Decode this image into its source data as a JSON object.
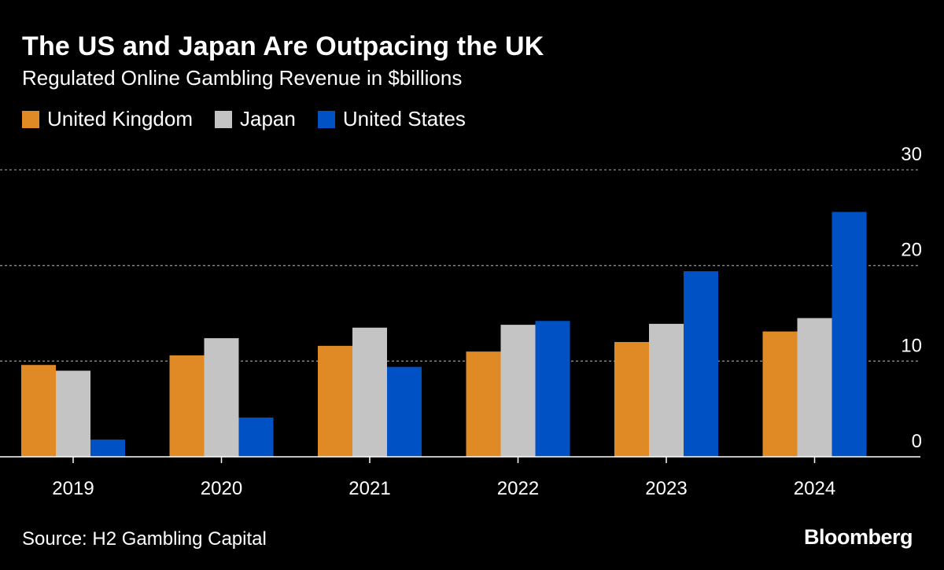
{
  "chart_data": {
    "type": "bar",
    "title": "The US and Japan Are Outpacing the UK",
    "subtitle": "Regulated Online Gambling Revenue in $billions",
    "categories": [
      "2019",
      "2020",
      "2021",
      "2022",
      "2023",
      "2024"
    ],
    "series": [
      {
        "name": "United Kingdom",
        "color": "#e08a25",
        "values": [
          9.6,
          10.6,
          11.6,
          11.0,
          12.0,
          13.1
        ]
      },
      {
        "name": "Japan",
        "color": "#c4c4c4",
        "values": [
          9.0,
          12.4,
          13.5,
          13.8,
          13.9,
          14.5
        ]
      },
      {
        "name": "United States",
        "color": "#0051c3",
        "values": [
          1.8,
          4.1,
          9.4,
          14.2,
          19.4,
          25.6
        ]
      }
    ],
    "y_ticks": [
      "0",
      "10",
      "20",
      "30"
    ],
    "ylim": [
      0,
      30
    ],
    "xlabel": "",
    "ylabel": "",
    "grid": true,
    "legend_position": "top-left",
    "source": "Source: H2 Gambling Capital",
    "brand": "Bloomberg"
  }
}
